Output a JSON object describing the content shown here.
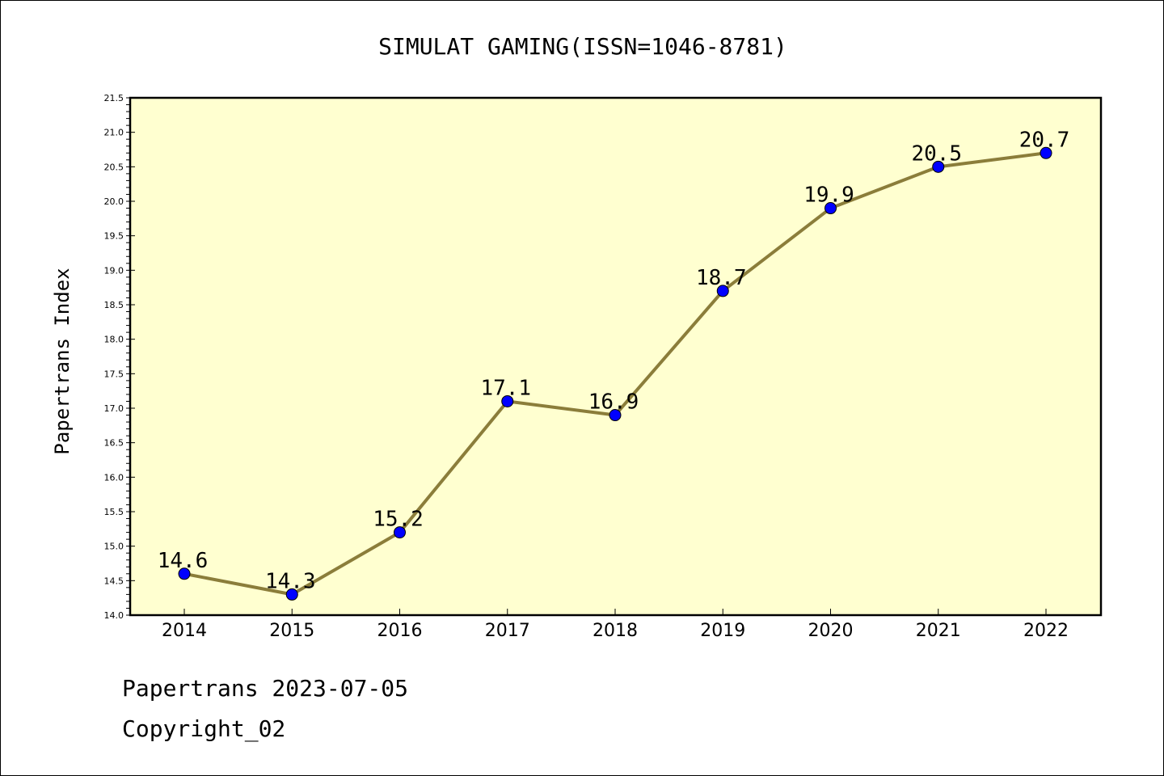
{
  "footer": {
    "line1": "Papertrans 2023-07-05",
    "line2": "Copyright_02"
  },
  "chart_data": {
    "type": "line",
    "title": "SIMULAT GAMING(ISSN=1046-8781)",
    "xlabel": "",
    "ylabel": "Papertrans Index",
    "x": [
      "2014",
      "2015",
      "2016",
      "2017",
      "2018",
      "2019",
      "2020",
      "2021",
      "2022"
    ],
    "values": [
      14.6,
      14.3,
      15.2,
      17.1,
      16.9,
      18.7,
      19.9,
      20.5,
      20.7
    ],
    "data_labels": [
      "14.6",
      "14.3",
      "15.2",
      "17.1",
      "16.9",
      "18.7",
      "19.9",
      "20.5",
      "20.7"
    ],
    "ylim": [
      14.0,
      21.5
    ],
    "yticks": [
      "14.0",
      "14.5",
      "15.0",
      "15.5",
      "16.0",
      "16.5",
      "17.0",
      "17.5",
      "18.0",
      "18.5",
      "19.0",
      "19.5",
      "20.0",
      "20.5",
      "21.0",
      "21.5"
    ],
    "grid": false,
    "legend": "none",
    "colors": {
      "plot_background": "#ffffd0",
      "line": "#8b7d3a",
      "marker": "#0000ff",
      "axes": "#000000"
    }
  }
}
